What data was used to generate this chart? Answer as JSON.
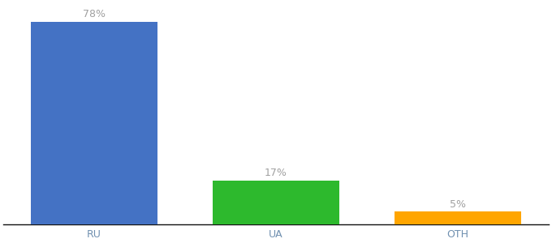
{
  "categories": [
    "RU",
    "UA",
    "OTH"
  ],
  "values": [
    78,
    17,
    5
  ],
  "labels": [
    "78%",
    "17%",
    "5%"
  ],
  "bar_colors": [
    "#4472c4",
    "#2db92d",
    "#ffa500"
  ],
  "background_color": "#ffffff",
  "ylim": [
    0,
    85
  ],
  "label_fontsize": 9,
  "tick_fontsize": 9,
  "label_color": "#a0a0a0",
  "tick_color": "#7090b0",
  "bar_width": 0.7,
  "xlim": [
    -0.5,
    2.5
  ]
}
